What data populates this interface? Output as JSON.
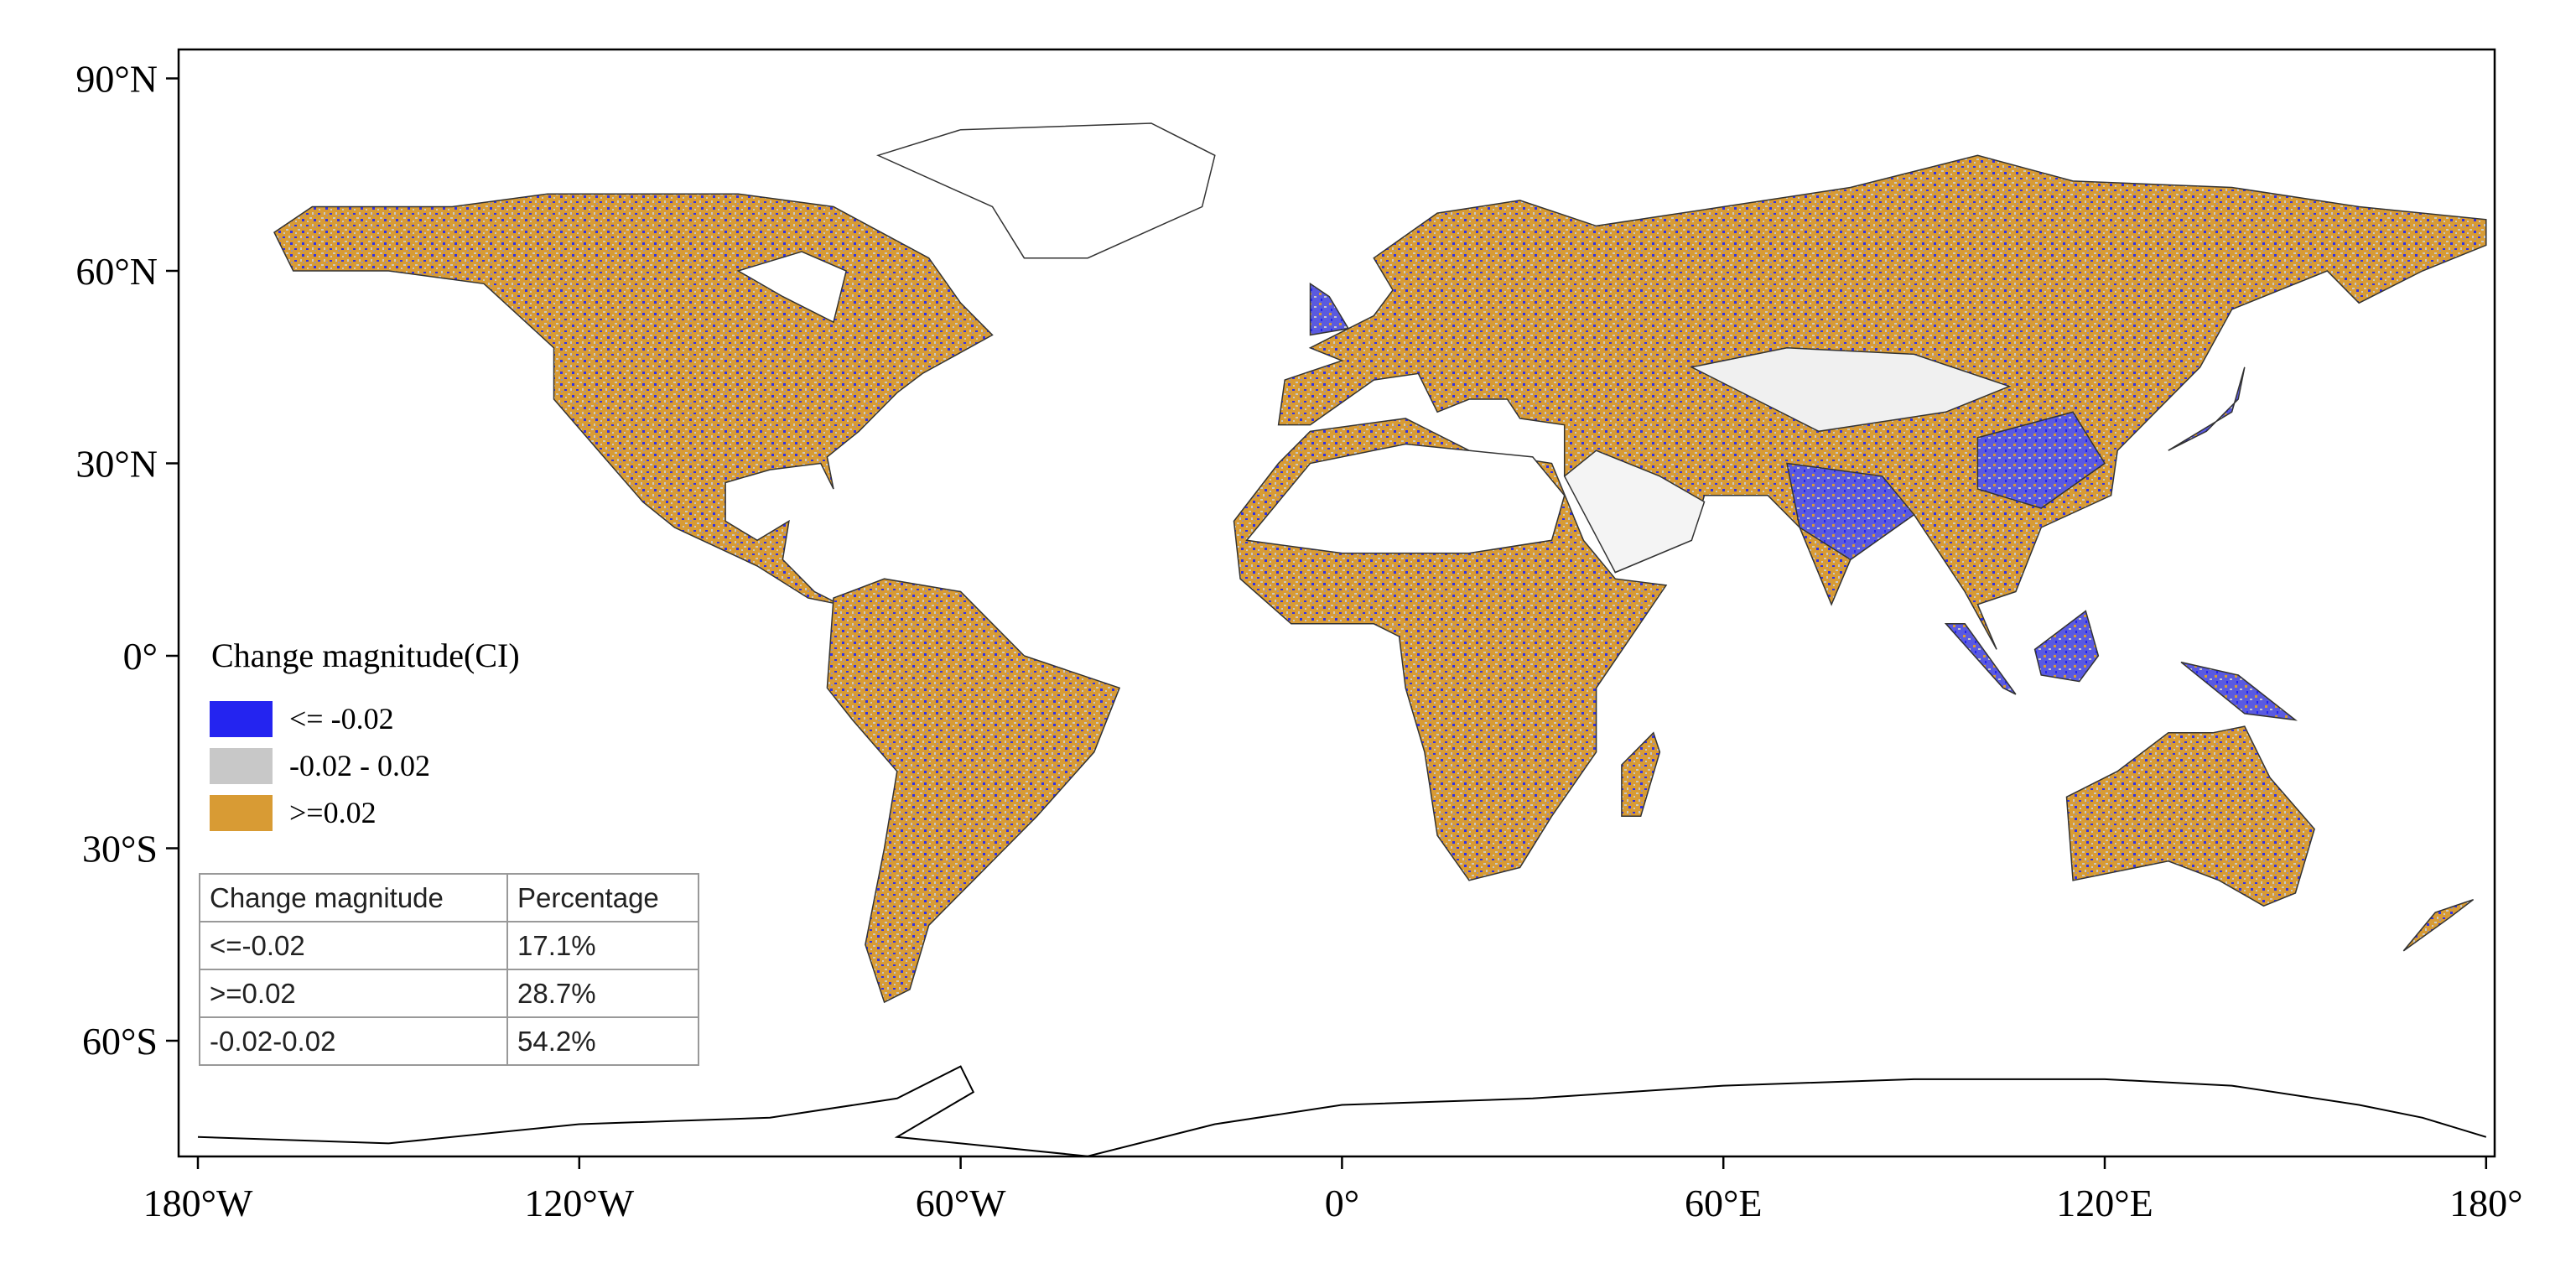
{
  "map": {
    "x_ticks": [
      {
        "value": -180,
        "label": "180°W"
      },
      {
        "value": -120,
        "label": "120°W"
      },
      {
        "value": -60,
        "label": "60°W"
      },
      {
        "value": 0,
        "label": "0°"
      },
      {
        "value": 60,
        "label": "60°E"
      },
      {
        "value": 120,
        "label": "120°E"
      },
      {
        "value": 180,
        "label": "180°"
      }
    ],
    "y_ticks": [
      {
        "value": 90,
        "label": "90°N"
      },
      {
        "value": 60,
        "label": "60°N"
      },
      {
        "value": 30,
        "label": "30°N"
      },
      {
        "value": 0,
        "label": "0°"
      },
      {
        "value": -30,
        "label": "30°S"
      },
      {
        "value": -60,
        "label": "60°S"
      }
    ],
    "legend": {
      "title": "Change magnitude(CI)",
      "items": [
        {
          "label": "<= -0.02",
          "color": "#2424f0"
        },
        {
          "label": "-0.02 - 0.02",
          "color": "#c8c8c8"
        },
        {
          "label": ">=0.02",
          "color": "#d89b34"
        }
      ]
    },
    "table": {
      "header": [
        "Change magnitude",
        "Percentage"
      ],
      "rows": [
        [
          "<=-0.02",
          "17.1%"
        ],
        [
          ">=0.02",
          "28.7%"
        ],
        [
          "-0.02-0.02",
          "54.2%"
        ]
      ]
    }
  }
}
